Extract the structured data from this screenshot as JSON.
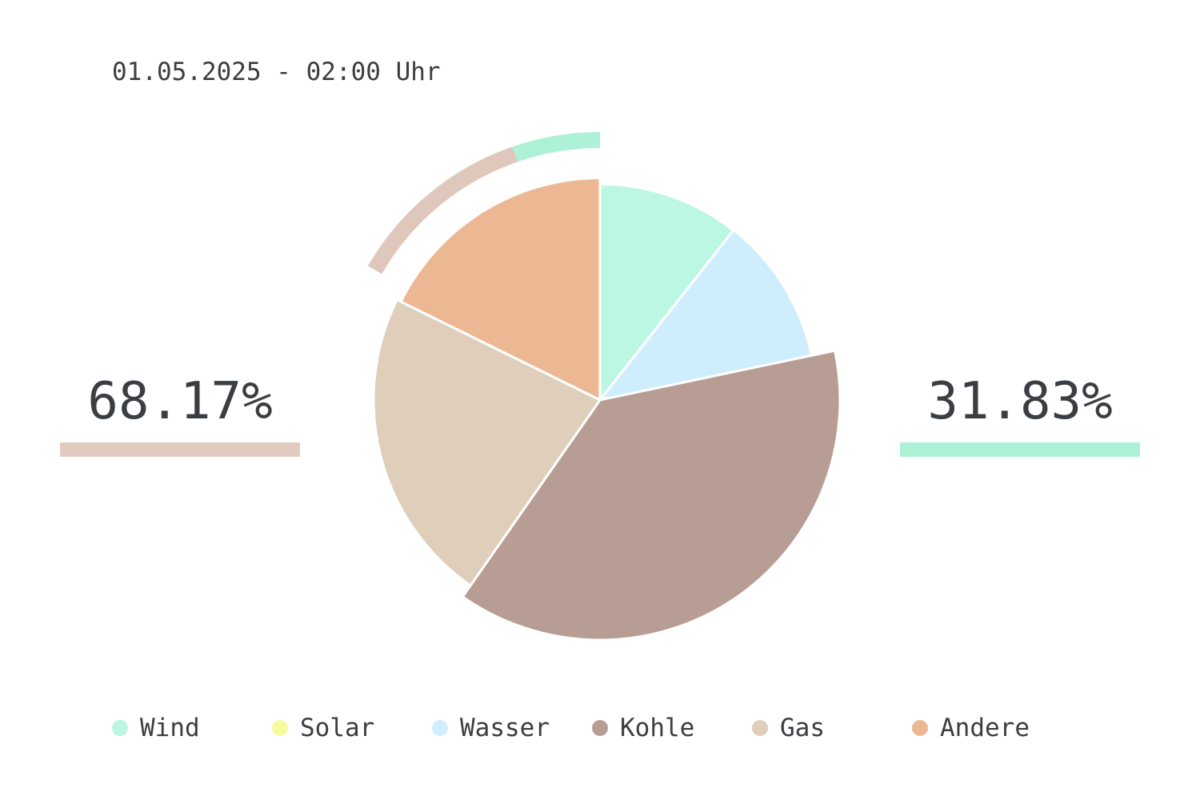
{
  "header": {
    "timestamp": "01.05.2025 - 02:00 Uhr"
  },
  "shares": {
    "left": {
      "value": "68.17%",
      "color": "#e1cbbf"
    },
    "right": {
      "value": "31.83%",
      "color": "#adf1d6"
    }
  },
  "chart_data": {
    "type": "pie",
    "title": "",
    "start_angle_deg": 0,
    "direction": "clockwise",
    "slices": [
      {
        "name": "Wind",
        "value": 10.6,
        "color": "#bbf7e3"
      },
      {
        "name": "Solar",
        "value": 0.0,
        "color": "#f8fb9f"
      },
      {
        "name": "Wasser",
        "value": 11.1,
        "color": "#cfeefd"
      },
      {
        "name": "Kohle",
        "value": 38.0,
        "color": "#b89d94"
      },
      {
        "name": "Gas",
        "value": 22.6,
        "color": "#dfcfba"
      },
      {
        "name": "Andere",
        "value": 17.7,
        "color": "#ecb894"
      }
    ],
    "outer_ring": {
      "segments": [
        {
          "value": 68.17,
          "color": "#dfc8bb"
        },
        {
          "value": 31.83,
          "color": "#adf1d6"
        }
      ]
    },
    "legend": {
      "position": "bottom",
      "items": [
        {
          "label": "Wind",
          "color": "#bbf7e3"
        },
        {
          "label": "Solar",
          "color": "#f8fb9f"
        },
        {
          "label": "Wasser",
          "color": "#cfeefd"
        },
        {
          "label": "Kohle",
          "color": "#b89d94"
        },
        {
          "label": "Gas",
          "color": "#dfcfba"
        },
        {
          "label": "Andere",
          "color": "#ecb894"
        }
      ]
    }
  }
}
